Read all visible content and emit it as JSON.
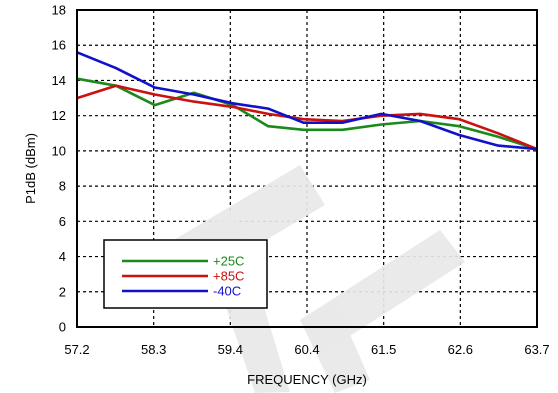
{
  "chart_data": {
    "type": "line",
    "title": "",
    "xlabel": "FREQUENCY (GHz)",
    "ylabel": "P1dB (dBm)",
    "xlim": [
      57.2,
      63.7
    ],
    "ylim": [
      0,
      18
    ],
    "x_ticks": [
      "57.2",
      "58.3",
      "59.4",
      "60.4",
      "61.5",
      "62.6",
      "63.7"
    ],
    "y_ticks": [
      "0",
      "2",
      "4",
      "6",
      "8",
      "10",
      "12",
      "14",
      "16",
      "18"
    ],
    "grid": true,
    "legend_position": "bottom-left",
    "series": [
      {
        "name": "+25C",
        "color": "#1a8a1a",
        "x": [
          57.2,
          57.75,
          58.3,
          58.85,
          59.4,
          59.9,
          60.4,
          60.95,
          61.5,
          62.05,
          62.6,
          63.15,
          63.7
        ],
        "y": [
          14.1,
          13.7,
          12.6,
          13.3,
          12.6,
          11.4,
          11.2,
          11.2,
          11.5,
          11.7,
          11.4,
          10.8,
          10.1
        ]
      },
      {
        "name": "+85C",
        "color": "#cc1111",
        "x": [
          57.2,
          57.75,
          58.3,
          58.85,
          59.4,
          59.9,
          60.4,
          60.95,
          61.5,
          62.05,
          62.6,
          63.15,
          63.7
        ],
        "y": [
          13.0,
          13.7,
          13.2,
          12.8,
          12.5,
          12.1,
          11.8,
          11.7,
          12.0,
          12.1,
          11.8,
          11.0,
          10.1
        ]
      },
      {
        "name": "-40C",
        "color": "#1111cc",
        "x": [
          57.2,
          57.75,
          58.3,
          58.85,
          59.4,
          59.9,
          60.4,
          60.95,
          61.5,
          62.05,
          62.6,
          63.15,
          63.7
        ],
        "y": [
          15.6,
          14.7,
          13.6,
          13.2,
          12.7,
          12.4,
          11.6,
          11.6,
          12.1,
          11.7,
          10.9,
          10.3,
          10.1
        ]
      }
    ],
    "watermark": "TE"
  }
}
